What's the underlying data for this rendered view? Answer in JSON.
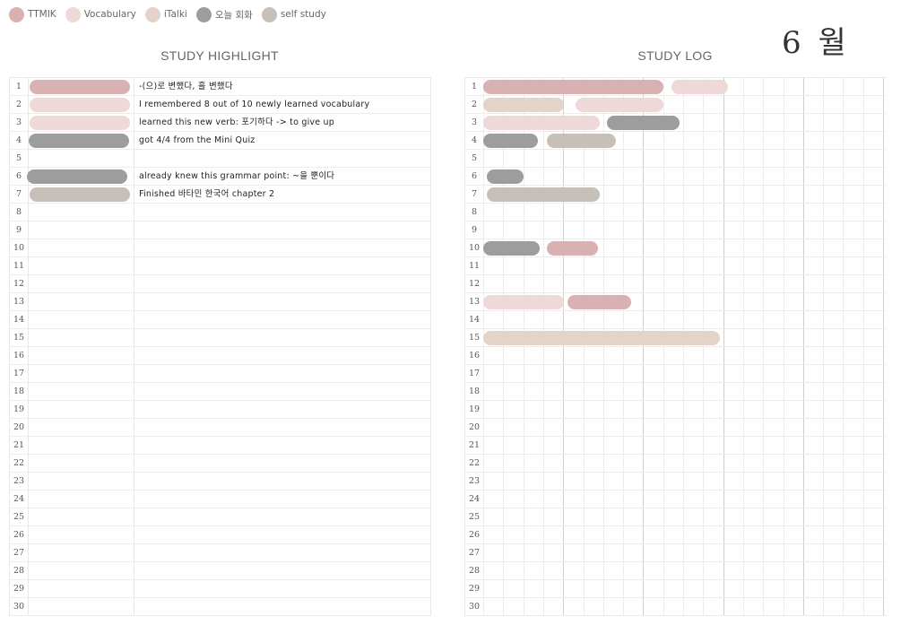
{
  "legend": [
    {
      "label": "TTMIK",
      "color": "#d8b1b0"
    },
    {
      "label": "Vocabulary",
      "color": "#eed9d8"
    },
    {
      "label": "iTalki",
      "color": "#e3d3c8"
    },
    {
      "label": "오늘 회화",
      "color": "#9d9d9d"
    },
    {
      "label": "self study",
      "color": "#c7c0b9"
    }
  ],
  "month": "6 월",
  "highlight": {
    "title": "STUDY HIGHLIGHT",
    "rows": [
      {
        "day": "1",
        "text": "-(으)로 변했다, 흘 변했다",
        "category": 0
      },
      {
        "day": "2",
        "text": "I remembered 8 out of 10 newly learned vocabulary",
        "category": 1
      },
      {
        "day": "3",
        "text": "learned this new verb: 포기하다 -> to give up",
        "category": 1
      },
      {
        "day": "4",
        "text": "got 4/4 from the Mini Quiz",
        "category": 3
      },
      {
        "day": "5",
        "text": "",
        "category": null
      },
      {
        "day": "6",
        "text": "already knew this grammar point: ~을 뿐이다",
        "category": 3
      },
      {
        "day": "7",
        "text": "Finished 바타민 한국어 chapter 2",
        "category": 4
      },
      {
        "day": "8",
        "text": "",
        "category": null
      },
      {
        "day": "9",
        "text": "",
        "category": null
      },
      {
        "day": "10",
        "text": "",
        "category": null
      },
      {
        "day": "11",
        "text": "",
        "category": null
      },
      {
        "day": "12",
        "text": "",
        "category": null
      },
      {
        "day": "13",
        "text": "",
        "category": null
      },
      {
        "day": "14",
        "text": "",
        "category": null
      },
      {
        "day": "15",
        "text": "",
        "category": null
      },
      {
        "day": "16",
        "text": "",
        "category": null
      },
      {
        "day": "17",
        "text": "",
        "category": null
      },
      {
        "day": "18",
        "text": "",
        "category": null
      },
      {
        "day": "19",
        "text": "",
        "category": null
      },
      {
        "day": "20",
        "text": "",
        "category": null
      },
      {
        "day": "21",
        "text": "",
        "category": null
      },
      {
        "day": "22",
        "text": "",
        "category": null
      },
      {
        "day": "23",
        "text": "",
        "category": null
      },
      {
        "day": "24",
        "text": "",
        "category": null
      },
      {
        "day": "25",
        "text": "",
        "category": null
      },
      {
        "day": "26",
        "text": "",
        "category": null
      },
      {
        "day": "27",
        "text": "",
        "category": null
      },
      {
        "day": "28",
        "text": "",
        "category": null
      },
      {
        "day": "29",
        "text": "",
        "category": null
      },
      {
        "day": "30",
        "text": "",
        "category": null
      }
    ]
  },
  "log": {
    "title": "STUDY LOG",
    "sessions": [
      {
        "day": 1,
        "category": 0,
        "start": 0,
        "end": 9.2
      },
      {
        "day": 1,
        "category": 1,
        "start": 9.4,
        "end": 12.4
      },
      {
        "day": 2,
        "category": 2,
        "start": 0,
        "end": 4.2
      },
      {
        "day": 2,
        "category": 1,
        "start": 4.6,
        "end": 9.2
      },
      {
        "day": 3,
        "category": 1,
        "start": 0,
        "end": 6.0
      },
      {
        "day": 3,
        "category": 3,
        "start": 6.2,
        "end": 10.0
      },
      {
        "day": 4,
        "category": 3,
        "start": 0,
        "end": 2.9
      },
      {
        "day": 4,
        "category": 4,
        "start": 3.2,
        "end": 6.8
      },
      {
        "day": 6,
        "category": 3,
        "start": 0.2,
        "end": 2.2
      },
      {
        "day": 7,
        "category": 4,
        "start": 0.2,
        "end": 6.0
      },
      {
        "day": 10,
        "category": 3,
        "start": 0,
        "end": 3.0
      },
      {
        "day": 10,
        "category": 0,
        "start": 3.2,
        "end": 5.9
      },
      {
        "day": 13,
        "category": 1,
        "start": 0,
        "end": 4.2
      },
      {
        "day": 13,
        "category": 0,
        "start": 4.2,
        "end": 7.6
      },
      {
        "day": 15,
        "category": 2,
        "start": 0,
        "end": 12.0
      }
    ]
  }
}
